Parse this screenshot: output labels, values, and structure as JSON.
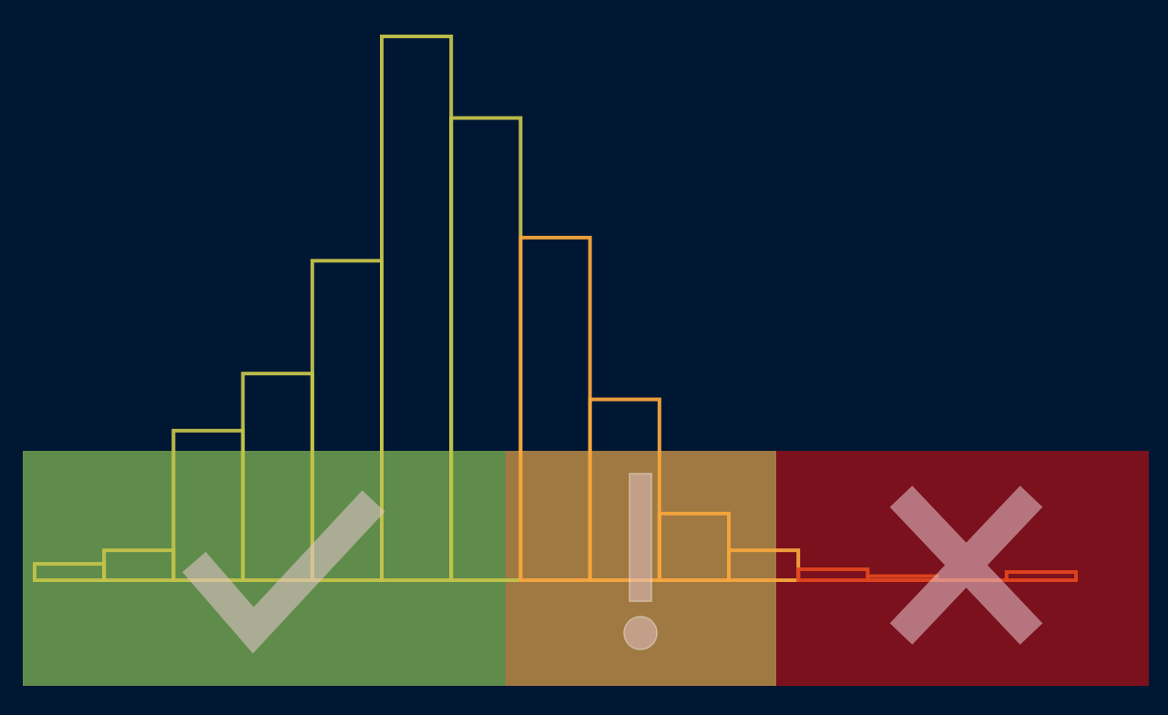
{
  "colors": {
    "background": "#001733",
    "zone_good": "#5f8c4a",
    "zone_warn": "#a07942",
    "zone_bad": "#7a111c",
    "bar_good": "#c2c24a",
    "bar_warn": "#f5a53c",
    "bar_bad": "#e0461e",
    "icon": "#e7c6cf"
  },
  "chart_data": {
    "type": "bar",
    "subtype": "histogram-outline",
    "values": [
      1.2,
      2.2,
      11.0,
      15.2,
      23.5,
      40.0,
      34.0,
      25.2,
      13.3,
      4.9,
      2.2,
      0.8,
      0.3,
      0,
      0.6
    ],
    "bar_zone": [
      "good",
      "good",
      "good",
      "good",
      "good",
      "good",
      "good",
      "warn",
      "warn",
      "warn",
      "warn",
      "bad",
      "bad",
      "bad",
      "bad"
    ],
    "ylim": [
      0,
      40
    ],
    "grid": false,
    "legend": "none",
    "zones": [
      {
        "key": "good",
        "icon": "checkmark-icon",
        "from_bar": 0,
        "to_bar": 7
      },
      {
        "key": "warn",
        "icon": "exclamation-icon",
        "from_bar": 7,
        "to_bar": 11
      },
      {
        "key": "bad",
        "icon": "x-mark-icon",
        "from_bar": 11,
        "to_bar": 15
      }
    ]
  }
}
